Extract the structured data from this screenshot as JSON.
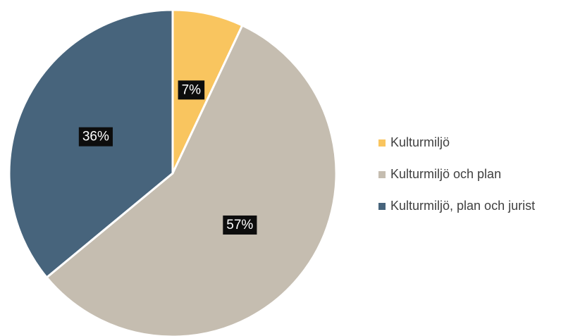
{
  "chart_data": {
    "type": "pie",
    "categories": [
      "Kulturmiljö",
      "Kulturmiljö och plan",
      "Kulturmiljö, plan och jurist"
    ],
    "values": [
      7,
      57,
      36
    ],
    "value_labels": [
      "7%",
      "57%",
      "36%"
    ],
    "colors": [
      "#f9c55f",
      "#c5bdb0",
      "#47647c"
    ],
    "legend": "right"
  }
}
